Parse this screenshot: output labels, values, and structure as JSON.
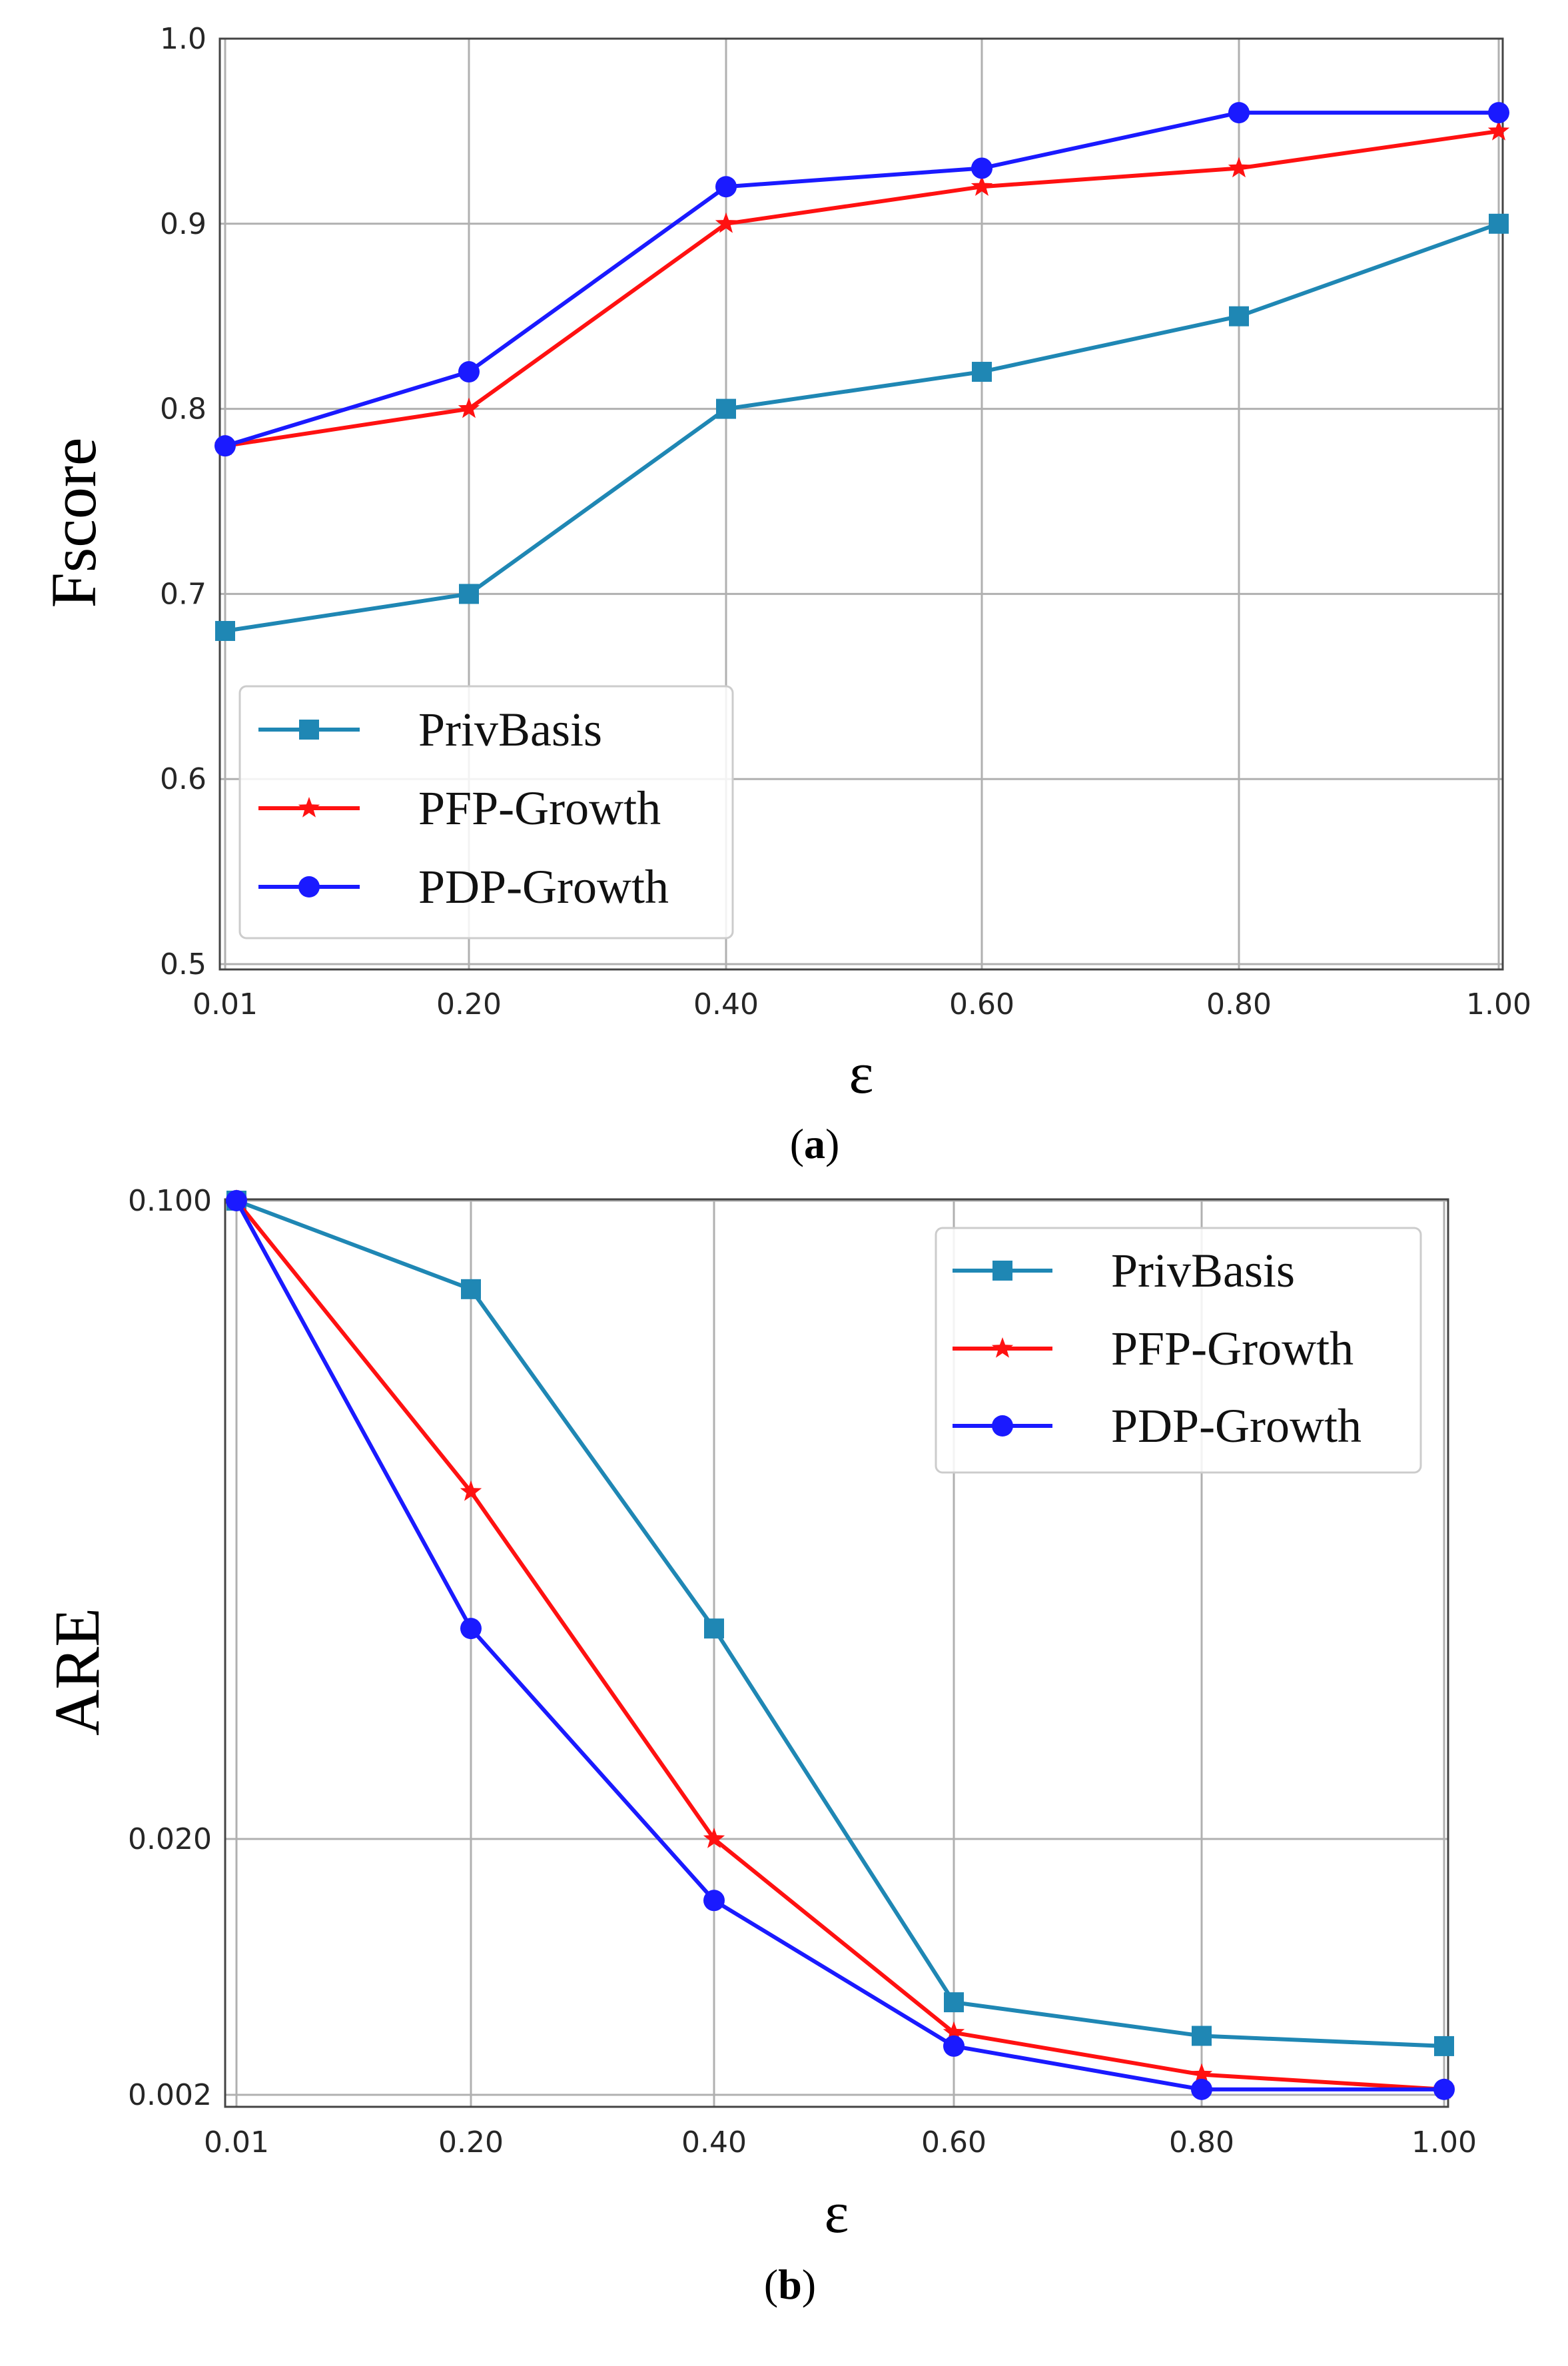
{
  "chart_data": [
    {
      "type": "line",
      "caption_prefix": "(",
      "caption_letter": "a",
      "caption_suffix": ")",
      "xlabel": "ε",
      "ylabel": "Fscore",
      "categories": [
        "0.01",
        "0.20",
        "0.40",
        "0.60",
        "0.80",
        "1.00"
      ],
      "yticks": [
        "0.5",
        "0.6",
        "0.7",
        "0.8",
        "0.9",
        "1.0"
      ],
      "ylim": [
        0.5,
        1.0
      ],
      "yscale": "linear",
      "legend_position": "lower-left",
      "grid": true,
      "series": [
        {
          "name": "PrivBasis",
          "color": "#1f87b4",
          "marker": "square",
          "values": [
            0.68,
            0.7,
            0.8,
            0.82,
            0.85,
            0.9
          ]
        },
        {
          "name": "PFP-Growth",
          "color": "#ff1111",
          "marker": "star",
          "values": [
            0.78,
            0.8,
            0.9,
            0.92,
            0.93,
            0.95
          ]
        },
        {
          "name": "PDP-Growth",
          "color": "#1a1aff",
          "marker": "circle",
          "values": [
            0.78,
            0.82,
            0.92,
            0.93,
            0.96,
            0.96
          ]
        }
      ]
    },
    {
      "type": "line",
      "caption_prefix": "(",
      "caption_letter": "b",
      "caption_suffix": ")",
      "xlabel": "ε",
      "ylabel": "ARE",
      "categories": [
        "0.01",
        "0.20",
        "0.40",
        "0.60",
        "0.80",
        "1.00"
      ],
      "yticks": [
        "0.002",
        "0.020",
        "0.100"
      ],
      "ylim": [
        0.002,
        0.1
      ],
      "yscale": "log",
      "legend_position": "upper-right",
      "grid": true,
      "series": [
        {
          "name": "PrivBasis",
          "color": "#1f87b4",
          "marker": "square",
          "values": [
            0.1,
            0.08,
            0.034,
            0.0046,
            0.0034,
            0.0031
          ]
        },
        {
          "name": "PFP-Growth",
          "color": "#ff1111",
          "marker": "star",
          "values": [
            0.1,
            0.048,
            0.02,
            0.0035,
            0.0024,
            0.0021
          ]
        },
        {
          "name": "PDP-Growth",
          "color": "#1a1aff",
          "marker": "circle",
          "values": [
            0.1,
            0.034,
            0.0115,
            0.0031,
            0.0021,
            0.0021
          ]
        }
      ]
    }
  ]
}
